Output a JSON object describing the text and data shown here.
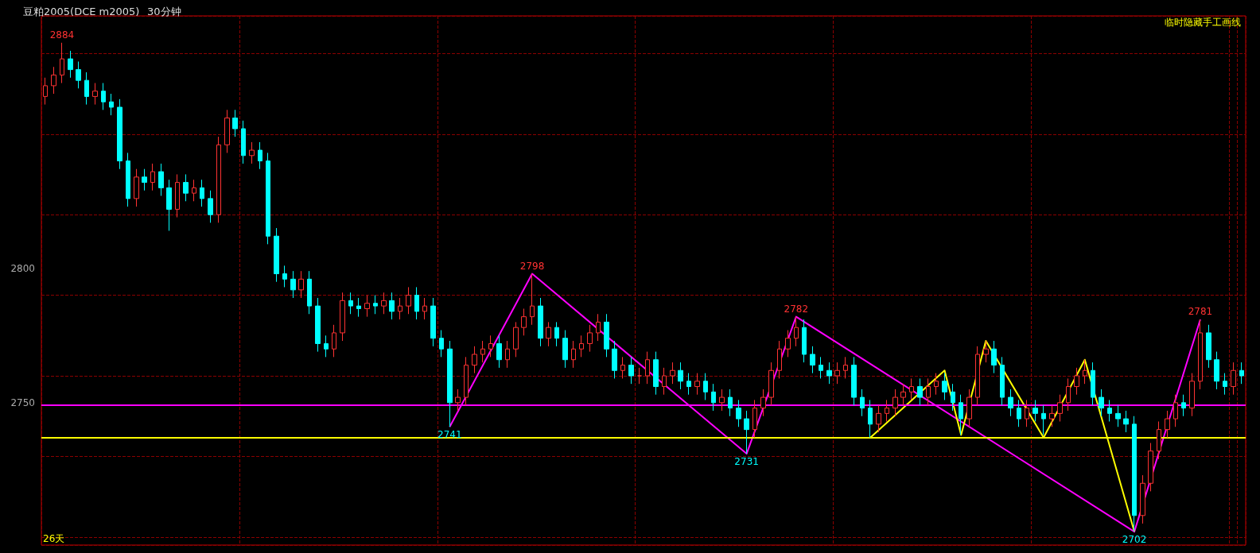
{
  "chart_data": {
    "type": "candlestick",
    "title": "豆粕2005(DCE m2005)",
    "subtitle": "30分钟",
    "annotations": [
      "临时隐藏手工画线",
      "26天",
      {
        "text": "2884",
        "y": 2884
      },
      {
        "text": "2741",
        "y": 2741
      },
      {
        "text": "2798",
        "y": 2798
      },
      {
        "text": "2731",
        "y": 2731
      },
      {
        "text": "2782",
        "y": 2782
      },
      {
        "text": "2702",
        "y": 2702
      },
      {
        "text": "2781",
        "y": 2781
      }
    ],
    "categories": [
      null,
      null,
      null,
      null,
      null,
      null,
      null,
      null,
      null,
      null,
      null,
      null,
      null,
      null,
      null,
      null,
      null,
      null,
      null,
      null,
      null,
      null,
      null,
      null,
      null,
      null,
      null,
      null,
      null,
      null,
      null,
      null,
      null,
      null,
      null,
      null,
      null,
      null,
      null,
      null,
      null,
      null,
      null,
      null,
      null,
      null,
      null,
      null,
      null,
      null,
      null,
      null,
      null,
      null,
      null,
      null,
      null,
      null,
      null,
      null,
      null,
      null,
      null,
      null,
      null,
      null,
      null,
      null,
      null,
      null,
      null,
      null,
      null,
      null,
      null,
      null,
      null,
      null,
      null,
      null,
      null,
      null,
      null,
      null,
      null,
      null,
      null,
      null,
      null,
      null,
      null,
      null,
      null,
      null,
      null,
      null,
      null,
      null,
      null,
      null,
      null,
      null,
      null,
      null,
      null,
      null,
      null,
      null,
      null,
      null,
      null,
      null,
      null,
      null,
      null,
      null,
      null,
      null,
      null,
      null,
      null,
      null,
      null,
      null,
      null,
      null,
      null,
      null,
      null,
      null,
      null,
      null,
      null,
      null,
      null,
      null,
      null,
      null,
      null,
      null,
      null,
      null,
      null,
      null,
      null,
      null
    ],
    "ohlc": [
      [
        2864,
        2871,
        2861,
        2868
      ],
      [
        2868,
        2875,
        2865,
        2872
      ],
      [
        2872,
        2884,
        2869,
        2878
      ],
      [
        2878,
        2881,
        2871,
        2874
      ],
      [
        2874,
        2877,
        2867,
        2870
      ],
      [
        2870,
        2873,
        2861,
        2864
      ],
      [
        2864,
        2869,
        2861,
        2866
      ],
      [
        2866,
        2869,
        2859,
        2862
      ],
      [
        2862,
        2865,
        2857,
        2860
      ],
      [
        2860,
        2863,
        2837,
        2840
      ],
      [
        2840,
        2843,
        2823,
        2826
      ],
      [
        2826,
        2837,
        2823,
        2834
      ],
      [
        2834,
        2837,
        2829,
        2832
      ],
      [
        2832,
        2839,
        2829,
        2836
      ],
      [
        2836,
        2839,
        2827,
        2830
      ],
      [
        2830,
        2833,
        2814,
        2822
      ],
      [
        2822,
        2835,
        2819,
        2832
      ],
      [
        2832,
        2835,
        2825,
        2828
      ],
      [
        2828,
        2833,
        2825,
        2830
      ],
      [
        2830,
        2833,
        2823,
        2826
      ],
      [
        2826,
        2829,
        2817,
        2820
      ],
      [
        2820,
        2849,
        2817,
        2846
      ],
      [
        2846,
        2859,
        2843,
        2856
      ],
      [
        2856,
        2859,
        2849,
        2852
      ],
      [
        2852,
        2855,
        2839,
        2842
      ],
      [
        2842,
        2847,
        2839,
        2844
      ],
      [
        2844,
        2847,
        2837,
        2840
      ],
      [
        2840,
        2843,
        2809,
        2812
      ],
      [
        2812,
        2815,
        2795,
        2798
      ],
      [
        2798,
        2801,
        2793,
        2796
      ],
      [
        2796,
        2799,
        2789,
        2792
      ],
      [
        2792,
        2799,
        2789,
        2796
      ],
      [
        2796,
        2799,
        2783,
        2786
      ],
      [
        2786,
        2789,
        2769,
        2772
      ],
      [
        2772,
        2775,
        2767,
        2770
      ],
      [
        2770,
        2779,
        2767,
        2776
      ],
      [
        2776,
        2791,
        2773,
        2788
      ],
      [
        2788,
        2791,
        2783,
        2786
      ],
      [
        2786,
        2789,
        2782,
        2785
      ],
      [
        2785,
        2790,
        2782,
        2787
      ],
      [
        2787,
        2790,
        2783,
        2786
      ],
      [
        2786,
        2791,
        2783,
        2788
      ],
      [
        2788,
        2791,
        2781,
        2784
      ],
      [
        2784,
        2789,
        2781,
        2786
      ],
      [
        2786,
        2793,
        2783,
        2790
      ],
      [
        2790,
        2793,
        2781,
        2784
      ],
      [
        2784,
        2789,
        2781,
        2786
      ],
      [
        2786,
        2789,
        2771,
        2774
      ],
      [
        2774,
        2777,
        2767,
        2770
      ],
      [
        2770,
        2773,
        2741,
        2750
      ],
      [
        2750,
        2755,
        2747,
        2752
      ],
      [
        2752,
        2767,
        2749,
        2764
      ],
      [
        2764,
        2771,
        2761,
        2768
      ],
      [
        2768,
        2773,
        2765,
        2770
      ],
      [
        2770,
        2775,
        2767,
        2772
      ],
      [
        2772,
        2775,
        2763,
        2766
      ],
      [
        2766,
        2773,
        2763,
        2770
      ],
      [
        2770,
        2780,
        2767,
        2778
      ],
      [
        2778,
        2785,
        2775,
        2782
      ],
      [
        2782,
        2798,
        2779,
        2786
      ],
      [
        2786,
        2789,
        2771,
        2774
      ],
      [
        2774,
        2780,
        2771,
        2778
      ],
      [
        2778,
        2780,
        2771,
        2774
      ],
      [
        2774,
        2777,
        2763,
        2766
      ],
      [
        2766,
        2773,
        2763,
        2770
      ],
      [
        2770,
        2775,
        2767,
        2772
      ],
      [
        2772,
        2779,
        2769,
        2776
      ],
      [
        2776,
        2783,
        2773,
        2780
      ],
      [
        2780,
        2783,
        2767,
        2770
      ],
      [
        2770,
        2773,
        2759,
        2762
      ],
      [
        2762,
        2767,
        2759,
        2764
      ],
      [
        2764,
        2767,
        2757,
        2760
      ],
      [
        2760,
        2763,
        2757,
        2760
      ],
      [
        2760,
        2769,
        2757,
        2766
      ],
      [
        2766,
        2769,
        2753,
        2756
      ],
      [
        2756,
        2763,
        2753,
        2760
      ],
      [
        2760,
        2765,
        2757,
        2762
      ],
      [
        2762,
        2765,
        2755,
        2758
      ],
      [
        2758,
        2761,
        2753,
        2756
      ],
      [
        2756,
        2761,
        2753,
        2758
      ],
      [
        2758,
        2761,
        2751,
        2754
      ],
      [
        2754,
        2757,
        2747,
        2750
      ],
      [
        2750,
        2755,
        2747,
        2752
      ],
      [
        2752,
        2755,
        2745,
        2748
      ],
      [
        2748,
        2751,
        2741,
        2744
      ],
      [
        2744,
        2747,
        2731,
        2740
      ],
      [
        2740,
        2751,
        2737,
        2748
      ],
      [
        2748,
        2755,
        2745,
        2752
      ],
      [
        2752,
        2765,
        2749,
        2762
      ],
      [
        2762,
        2773,
        2759,
        2770
      ],
      [
        2770,
        2777,
        2767,
        2774
      ],
      [
        2774,
        2782,
        2771,
        2778
      ],
      [
        2778,
        2781,
        2765,
        2768
      ],
      [
        2768,
        2771,
        2761,
        2764
      ],
      [
        2764,
        2767,
        2759,
        2762
      ],
      [
        2762,
        2765,
        2757,
        2760
      ],
      [
        2760,
        2765,
        2757,
        2762
      ],
      [
        2762,
        2767,
        2759,
        2764
      ],
      [
        2764,
        2767,
        2749,
        2752
      ],
      [
        2752,
        2755,
        2745,
        2748
      ],
      [
        2748,
        2751,
        2737,
        2742
      ],
      [
        2742,
        2749,
        2739,
        2746
      ],
      [
        2746,
        2751,
        2743,
        2748
      ],
      [
        2748,
        2755,
        2745,
        2752
      ],
      [
        2752,
        2757,
        2749,
        2754
      ],
      [
        2754,
        2759,
        2751,
        2756
      ],
      [
        2756,
        2759,
        2749,
        2752
      ],
      [
        2752,
        2759,
        2749,
        2756
      ],
      [
        2756,
        2761,
        2753,
        2758
      ],
      [
        2758,
        2761,
        2751,
        2754
      ],
      [
        2754,
        2757,
        2747,
        2750
      ],
      [
        2750,
        2753,
        2738,
        2744
      ],
      [
        2744,
        2755,
        2741,
        2752
      ],
      [
        2752,
        2771,
        2749,
        2768
      ],
      [
        2768,
        2773,
        2765,
        2770
      ],
      [
        2770,
        2773,
        2761,
        2764
      ],
      [
        2764,
        2767,
        2749,
        2752
      ],
      [
        2752,
        2755,
        2745,
        2748
      ],
      [
        2748,
        2751,
        2741,
        2744
      ],
      [
        2744,
        2751,
        2741,
        2748
      ],
      [
        2748,
        2751,
        2743,
        2746
      ],
      [
        2746,
        2749,
        2738,
        2744
      ],
      [
        2744,
        2749,
        2741,
        2746
      ],
      [
        2746,
        2753,
        2743,
        2750
      ],
      [
        2750,
        2759,
        2747,
        2756
      ],
      [
        2756,
        2763,
        2753,
        2760
      ],
      [
        2760,
        2766,
        2757,
        2762
      ],
      [
        2762,
        2765,
        2749,
        2752
      ],
      [
        2752,
        2755,
        2745,
        2748
      ],
      [
        2748,
        2751,
        2743,
        2746
      ],
      [
        2746,
        2749,
        2741,
        2744
      ],
      [
        2744,
        2747,
        2739,
        2742
      ],
      [
        2742,
        2745,
        2702,
        2708
      ],
      [
        2708,
        2723,
        2705,
        2720
      ],
      [
        2720,
        2735,
        2717,
        2732
      ],
      [
        2732,
        2743,
        2729,
        2740
      ],
      [
        2740,
        2747,
        2737,
        2744
      ],
      [
        2744,
        2753,
        2741,
        2750
      ],
      [
        2750,
        2753,
        2745,
        2748
      ],
      [
        2748,
        2761,
        2745,
        2758
      ],
      [
        2758,
        2781,
        2755,
        2776
      ],
      [
        2776,
        2779,
        2763,
        2766
      ],
      [
        2766,
        2769,
        2755,
        2758
      ],
      [
        2758,
        2761,
        2753,
        2756
      ],
      [
        2756,
        2765,
        2753,
        2762
      ],
      [
        2762,
        2765,
        2757,
        2760
      ]
    ],
    "series": [
      {
        "type": "line",
        "color": "#ff00ff",
        "values": [
          null,
          null,
          null,
          null,
          null,
          null,
          null,
          null,
          null,
          null,
          null,
          null,
          null,
          null,
          null,
          null,
          null,
          null,
          null,
          null,
          null,
          null,
          null,
          null,
          null,
          null,
          null,
          null,
          null,
          null,
          null,
          null,
          null,
          null,
          null,
          null,
          null,
          null,
          null,
          null,
          null,
          null,
          null,
          null,
          null,
          null,
          null,
          null,
          null,
          2741,
          null,
          null,
          null,
          null,
          null,
          null,
          null,
          null,
          null,
          2798,
          null,
          null,
          null,
          null,
          null,
          null,
          null,
          null,
          null,
          null,
          null,
          null,
          null,
          null,
          null,
          null,
          null,
          null,
          null,
          null,
          null,
          null,
          null,
          null,
          null,
          2731,
          null,
          null,
          null,
          null,
          null,
          2782,
          null,
          null,
          null,
          null,
          null,
          null,
          null,
          null,
          null,
          null,
          null,
          null,
          null,
          null,
          null,
          null,
          null,
          null,
          null,
          null,
          null,
          null,
          null,
          null,
          null,
          null,
          null,
          null,
          null,
          null,
          null,
          null,
          null,
          null,
          null,
          null,
          null,
          null,
          null,
          null,
          2702,
          null,
          null,
          null,
          null,
          null,
          null,
          null,
          2781,
          null,
          null,
          null,
          null,
          null
        ]
      },
      {
        "type": "line",
        "color": "#ffff00",
        "values": [
          null,
          null,
          null,
          null,
          null,
          null,
          null,
          null,
          null,
          null,
          null,
          null,
          null,
          null,
          null,
          null,
          null,
          null,
          null,
          null,
          null,
          null,
          null,
          null,
          null,
          null,
          null,
          null,
          null,
          null,
          null,
          null,
          null,
          null,
          null,
          null,
          null,
          null,
          null,
          null,
          null,
          null,
          null,
          null,
          null,
          null,
          null,
          null,
          null,
          null,
          null,
          null,
          null,
          null,
          null,
          null,
          null,
          null,
          null,
          null,
          null,
          null,
          null,
          null,
          null,
          null,
          null,
          null,
          null,
          null,
          null,
          null,
          null,
          null,
          null,
          null,
          null,
          null,
          null,
          null,
          null,
          null,
          null,
          null,
          null,
          null,
          null,
          null,
          null,
          null,
          null,
          null,
          null,
          null,
          null,
          null,
          null,
          null,
          null,
          null,
          2737,
          null,
          null,
          null,
          null,
          null,
          null,
          null,
          null,
          2762,
          null,
          2738,
          null,
          null,
          2773,
          null,
          null,
          null,
          null,
          null,
          null,
          2737,
          null,
          null,
          null,
          null,
          2766,
          null,
          null,
          null,
          null,
          null,
          2702,
          null,
          null,
          null,
          null,
          null,
          null,
          null,
          null,
          null,
          null,
          null,
          null,
          null
        ]
      }
    ],
    "ref_lines": [
      {
        "axis": "y",
        "value": 2749,
        "color": "#ff00ff"
      },
      {
        "axis": "y",
        "value": 2737,
        "color": "#ffff00"
      }
    ],
    "ylim": [
      2697,
      2894
    ],
    "yticks": [
      2750,
      2800
    ],
    "grid": true,
    "tick_labels": "y",
    "marker": "none",
    "line_style": "solid"
  }
}
